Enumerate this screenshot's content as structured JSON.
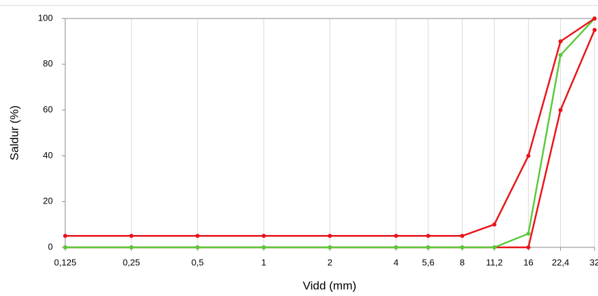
{
  "chart_data": {
    "type": "line",
    "xlabel": "Vidd (mm)",
    "ylabel": "Saldur (%)",
    "log_x": true,
    "xgrid": true,
    "ygrid": false,
    "x": [
      0.125,
      0.25,
      0.5,
      1,
      2,
      4,
      5.6,
      8,
      11.2,
      16,
      22.4,
      32
    ],
    "series": [
      {
        "color": "#e8141a",
        "values": [
          5,
          5,
          5,
          5,
          5,
          5,
          5,
          5,
          10,
          40,
          90,
          100
        ]
      },
      {
        "color": "#5cc93c",
        "values": [
          0,
          0,
          0,
          0,
          0,
          0,
          0,
          0,
          0,
          6,
          84,
          100
        ]
      },
      {
        "color": "#e8141a",
        "values": [
          0,
          0,
          0,
          0,
          0,
          0,
          0,
          0,
          0,
          0,
          60,
          95
        ]
      }
    ],
    "xlim": [
      0.125,
      32
    ],
    "xticks": [
      {
        "value": 0.125,
        "label": "0,125"
      },
      {
        "value": 0.25,
        "label": "0,25"
      },
      {
        "value": 0.5,
        "label": "0,5"
      },
      1,
      2,
      4,
      {
        "value": 5.6,
        "label": "5,6"
      },
      8,
      {
        "value": 11.2,
        "label": "11,2"
      },
      16,
      {
        "value": 22.4,
        "label": "22,4"
      },
      32
    ],
    "ylim": [
      0,
      100
    ],
    "yticks": [
      0,
      20,
      40,
      60,
      80,
      100
    ]
  }
}
